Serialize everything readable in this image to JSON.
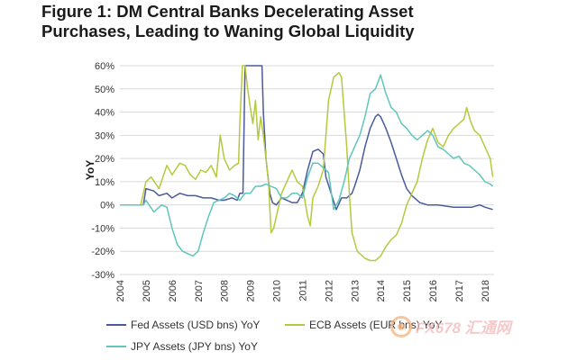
{
  "title_line1": "Figure 1: DM Central Banks Decelerating Asset",
  "title_line2": "Purchases, Leading to Waning Global Liquidity",
  "watermark_text": "FX678 汇通网",
  "chart_data": {
    "type": "line",
    "ylabel": "YoY",
    "ylim": [
      -30,
      60
    ],
    "xlim": [
      2004,
      2018.35
    ],
    "yticks": [
      -30,
      -20,
      -10,
      0,
      10,
      20,
      30,
      40,
      50,
      60
    ],
    "ytick_labels": [
      "-30%",
      "-20%",
      "-10%",
      "0%",
      "10%",
      "20%",
      "30%",
      "40%",
      "50%",
      "60%"
    ],
    "xticks": [
      2004,
      2005,
      2006,
      2007,
      2008,
      2009,
      2010,
      2011,
      2012,
      2013,
      2014,
      2015,
      2016,
      2017,
      2018
    ],
    "xtick_labels": [
      "2004",
      "2005",
      "2006",
      "2007",
      "2008",
      "2009",
      "2010",
      "2011",
      "2012",
      "2013",
      "2014",
      "2015",
      "2016",
      "2017",
      "2018"
    ],
    "grid": "horizontal",
    "legend_position": "bottom",
    "series": [
      {
        "name": "Fed Assets (USD bns) YoY",
        "color": "#4a5a9c",
        "points": [
          [
            2004,
            0
          ],
          [
            2004.9,
            0
          ],
          [
            2005.0,
            7
          ],
          [
            2005.3,
            6
          ],
          [
            2005.5,
            4
          ],
          [
            2005.8,
            5
          ],
          [
            2006.0,
            3
          ],
          [
            2006.3,
            5
          ],
          [
            2006.6,
            4
          ],
          [
            2006.9,
            4
          ],
          [
            2007.2,
            3
          ],
          [
            2007.5,
            3
          ],
          [
            2007.8,
            2
          ],
          [
            2008.0,
            2
          ],
          [
            2008.3,
            3
          ],
          [
            2008.5,
            2
          ],
          [
            2008.6,
            5
          ],
          [
            2008.72,
            5
          ],
          [
            2008.8,
            60
          ],
          [
            2008.92,
            60
          ],
          [
            2009.0,
            60
          ],
          [
            2009.3,
            60
          ],
          [
            2009.45,
            60
          ],
          [
            2009.5,
            40
          ],
          [
            2009.6,
            20
          ],
          [
            2009.75,
            5
          ],
          [
            2009.85,
            1
          ],
          [
            2010.0,
            0
          ],
          [
            2010.2,
            3
          ],
          [
            2010.4,
            2
          ],
          [
            2010.6,
            1
          ],
          [
            2010.8,
            1
          ],
          [
            2011.0,
            5
          ],
          [
            2011.2,
            15
          ],
          [
            2011.4,
            23
          ],
          [
            2011.6,
            24
          ],
          [
            2011.8,
            22
          ],
          [
            2011.9,
            12
          ],
          [
            2012.1,
            5
          ],
          [
            2012.3,
            -2
          ],
          [
            2012.5,
            3
          ],
          [
            2012.7,
            3
          ],
          [
            2012.9,
            5
          ],
          [
            2013.0,
            8
          ],
          [
            2013.2,
            15
          ],
          [
            2013.4,
            25
          ],
          [
            2013.6,
            33
          ],
          [
            2013.8,
            38
          ],
          [
            2013.9,
            39
          ],
          [
            2014.0,
            38
          ],
          [
            2014.2,
            33
          ],
          [
            2014.4,
            27
          ],
          [
            2014.6,
            20
          ],
          [
            2014.8,
            13
          ],
          [
            2015.0,
            7
          ],
          [
            2015.2,
            4
          ],
          [
            2015.5,
            1
          ],
          [
            2015.8,
            0
          ],
          [
            2016.2,
            0
          ],
          [
            2016.8,
            -1
          ],
          [
            2017.5,
            -1
          ],
          [
            2017.8,
            0
          ],
          [
            2018.0,
            -1
          ],
          [
            2018.3,
            -2
          ]
        ]
      },
      {
        "name": "ECB Assets (EUR bns) YoY",
        "color": "#b5c93e",
        "points": [
          [
            2004,
            0
          ],
          [
            2004.8,
            0
          ],
          [
            2005.0,
            10
          ],
          [
            2005.2,
            12
          ],
          [
            2005.5,
            7
          ],
          [
            2005.8,
            17
          ],
          [
            2006.0,
            13
          ],
          [
            2006.3,
            18
          ],
          [
            2006.5,
            17
          ],
          [
            2006.7,
            13
          ],
          [
            2006.9,
            11
          ],
          [
            2007.1,
            15
          ],
          [
            2007.3,
            14
          ],
          [
            2007.5,
            17
          ],
          [
            2007.7,
            12
          ],
          [
            2007.85,
            30
          ],
          [
            2008.0,
            20
          ],
          [
            2008.2,
            15
          ],
          [
            2008.4,
            17
          ],
          [
            2008.55,
            18
          ],
          [
            2008.6,
            35
          ],
          [
            2008.7,
            60
          ],
          [
            2008.8,
            60
          ],
          [
            2008.9,
            50
          ],
          [
            2009.0,
            42
          ],
          [
            2009.1,
            35
          ],
          [
            2009.2,
            45
          ],
          [
            2009.3,
            28
          ],
          [
            2009.4,
            38
          ],
          [
            2009.5,
            30
          ],
          [
            2009.6,
            20
          ],
          [
            2009.7,
            10
          ],
          [
            2009.8,
            -12
          ],
          [
            2009.9,
            -10
          ],
          [
            2010.0,
            -5
          ],
          [
            2010.2,
            5
          ],
          [
            2010.4,
            10
          ],
          [
            2010.6,
            15
          ],
          [
            2010.8,
            10
          ],
          [
            2011.0,
            8
          ],
          [
            2011.2,
            -5
          ],
          [
            2011.3,
            -9
          ],
          [
            2011.4,
            3
          ],
          [
            2011.6,
            8
          ],
          [
            2011.8,
            15
          ],
          [
            2012.0,
            45
          ],
          [
            2012.2,
            55
          ],
          [
            2012.4,
            57
          ],
          [
            2012.5,
            55
          ],
          [
            2012.7,
            25
          ],
          [
            2012.8,
            5
          ],
          [
            2012.9,
            -12
          ],
          [
            2013.1,
            -20
          ],
          [
            2013.4,
            -23
          ],
          [
            2013.6,
            -24
          ],
          [
            2013.8,
            -24
          ],
          [
            2014.0,
            -22
          ],
          [
            2014.2,
            -18
          ],
          [
            2014.4,
            -15
          ],
          [
            2014.6,
            -13
          ],
          [
            2014.8,
            -8
          ],
          [
            2015.0,
            0
          ],
          [
            2015.2,
            5
          ],
          [
            2015.4,
            10
          ],
          [
            2015.6,
            20
          ],
          [
            2015.8,
            28
          ],
          [
            2016.0,
            33
          ],
          [
            2016.2,
            27
          ],
          [
            2016.4,
            25
          ],
          [
            2016.6,
            30
          ],
          [
            2016.8,
            33
          ],
          [
            2017.0,
            35
          ],
          [
            2017.2,
            37
          ],
          [
            2017.3,
            42
          ],
          [
            2017.45,
            36
          ],
          [
            2017.6,
            32
          ],
          [
            2017.8,
            30
          ],
          [
            2018.0,
            25
          ],
          [
            2018.2,
            20
          ],
          [
            2018.3,
            12
          ]
        ]
      },
      {
        "name": "JPY Assets (JPY bns) YoY",
        "color": "#5fc6ba",
        "points": [
          [
            2004,
            0
          ],
          [
            2004.9,
            0
          ],
          [
            2005.0,
            2
          ],
          [
            2005.3,
            -3
          ],
          [
            2005.6,
            0
          ],
          [
            2005.8,
            -1
          ],
          [
            2006.0,
            -10
          ],
          [
            2006.2,
            -17
          ],
          [
            2006.4,
            -20
          ],
          [
            2006.6,
            -21
          ],
          [
            2006.8,
            -22
          ],
          [
            2007.0,
            -20
          ],
          [
            2007.2,
            -12
          ],
          [
            2007.4,
            -5
          ],
          [
            2007.6,
            1
          ],
          [
            2007.8,
            2
          ],
          [
            2008.0,
            3
          ],
          [
            2008.2,
            5
          ],
          [
            2008.4,
            4
          ],
          [
            2008.6,
            2
          ],
          [
            2008.8,
            5
          ],
          [
            2009.0,
            5
          ],
          [
            2009.2,
            8
          ],
          [
            2009.4,
            8
          ],
          [
            2009.6,
            9
          ],
          [
            2009.8,
            8
          ],
          [
            2010.0,
            7
          ],
          [
            2010.2,
            3
          ],
          [
            2010.4,
            3
          ],
          [
            2010.6,
            5
          ],
          [
            2010.8,
            5
          ],
          [
            2011.0,
            3
          ],
          [
            2011.2,
            12
          ],
          [
            2011.4,
            18
          ],
          [
            2011.6,
            18
          ],
          [
            2011.8,
            16
          ],
          [
            2012.0,
            14
          ],
          [
            2012.2,
            -2
          ],
          [
            2012.4,
            2
          ],
          [
            2012.6,
            10
          ],
          [
            2012.8,
            20
          ],
          [
            2013.0,
            25
          ],
          [
            2013.2,
            30
          ],
          [
            2013.4,
            38
          ],
          [
            2013.6,
            48
          ],
          [
            2013.8,
            50
          ],
          [
            2014.0,
            56
          ],
          [
            2014.2,
            48
          ],
          [
            2014.4,
            42
          ],
          [
            2014.6,
            40
          ],
          [
            2014.8,
            35
          ],
          [
            2015.0,
            33
          ],
          [
            2015.2,
            30
          ],
          [
            2015.4,
            28
          ],
          [
            2015.6,
            30
          ],
          [
            2015.8,
            32
          ],
          [
            2016.0,
            30
          ],
          [
            2016.2,
            25
          ],
          [
            2016.4,
            24
          ],
          [
            2016.6,
            22
          ],
          [
            2016.8,
            20
          ],
          [
            2017.0,
            21
          ],
          [
            2017.2,
            18
          ],
          [
            2017.4,
            17
          ],
          [
            2017.6,
            15
          ],
          [
            2017.8,
            13
          ],
          [
            2018.0,
            10
          ],
          [
            2018.2,
            9
          ],
          [
            2018.3,
            8
          ]
        ]
      }
    ]
  }
}
